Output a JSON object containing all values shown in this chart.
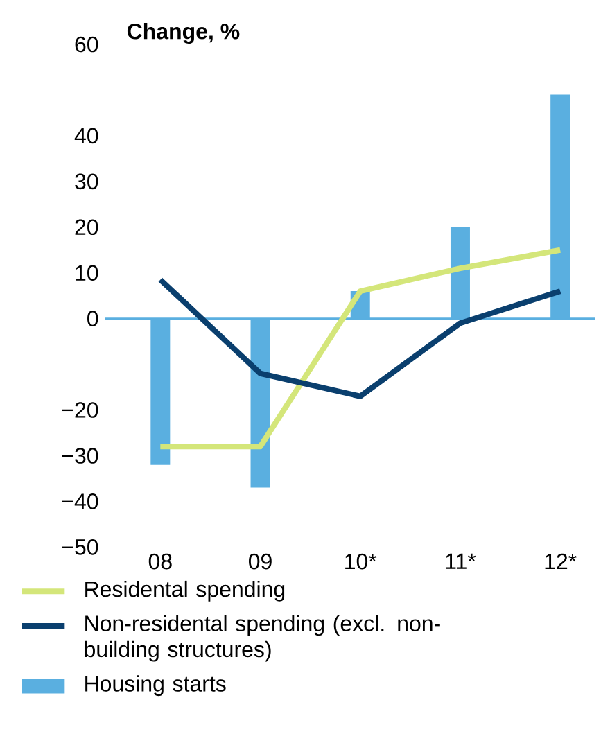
{
  "chart_data": {
    "type": "bar",
    "title": "Change, %",
    "categories": [
      "08",
      "09",
      "10*",
      "11*",
      "12*"
    ],
    "series": [
      {
        "name": "Residental spending",
        "type": "line",
        "color": "#d4e67a",
        "values": [
          -28,
          -28,
          6,
          11,
          15
        ]
      },
      {
        "name": "Non-residental spending (excl. non-building structures)",
        "type": "line",
        "color": "#0a3f6e",
        "values": [
          8.5,
          -12,
          -17,
          -1,
          6
        ]
      },
      {
        "name": "Housing starts",
        "color": "#5aafe0",
        "values": [
          -32,
          -37,
          6,
          20,
          49
        ]
      }
    ],
    "ylim": [
      -50,
      60
    ],
    "yticks": [
      60,
      40,
      30,
      20,
      10,
      0,
      {
        "value": -20,
        "label": "−20"
      },
      {
        "value": -30,
        "label": "−30"
      },
      {
        "value": -40,
        "label": "−40"
      },
      {
        "value": -50,
        "label": "−50"
      }
    ],
    "ref_lines": [
      {
        "axis": "y",
        "value": 0,
        "color": "#5aafe0"
      }
    ],
    "legend": "bottom",
    "marker": "none"
  }
}
